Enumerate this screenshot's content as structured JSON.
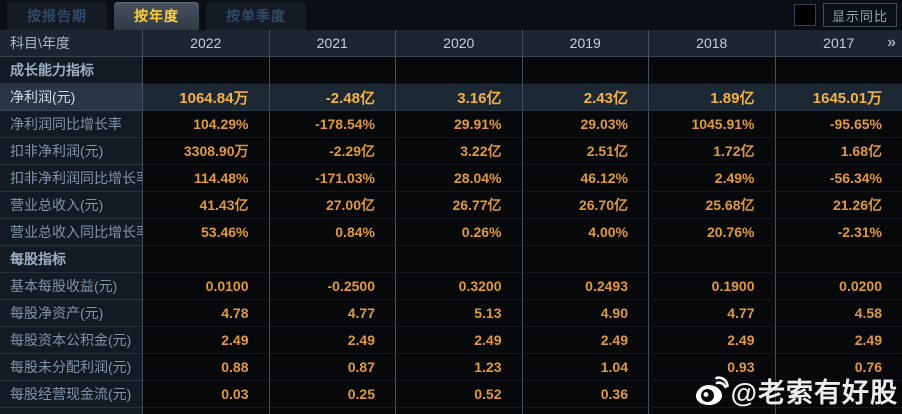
{
  "tabs": [
    {
      "label": "按报告期",
      "active": false
    },
    {
      "label": "按年度",
      "active": true
    },
    {
      "label": "按单季度",
      "active": false
    }
  ],
  "controls": {
    "show_yoy_label": "显示同比",
    "show_yoy_checked": false
  },
  "table": {
    "corner_header": "科目\\年度",
    "year_columns": [
      "2022",
      "2021",
      "2020",
      "2019",
      "2018",
      "2017"
    ],
    "more_icon": "»",
    "rows": [
      {
        "type": "section",
        "label": "成长能力指标",
        "highlight": false,
        "values": [
          "",
          "",
          "",
          "",
          "",
          ""
        ]
      },
      {
        "type": "data",
        "label": "净利润(元)",
        "highlight": true,
        "values": [
          "1064.84万",
          "-2.48亿",
          "3.16亿",
          "2.43亿",
          "1.89亿",
          "1645.01万"
        ]
      },
      {
        "type": "data",
        "label": "净利润同比增长率",
        "highlight": false,
        "values": [
          "104.29%",
          "-178.54%",
          "29.91%",
          "29.03%",
          "1045.91%",
          "-95.65%"
        ]
      },
      {
        "type": "data",
        "label": "扣非净利润(元)",
        "highlight": false,
        "values": [
          "3308.90万",
          "-2.29亿",
          "3.22亿",
          "2.51亿",
          "1.72亿",
          "1.68亿"
        ]
      },
      {
        "type": "data",
        "label": "扣非净利润同比增长率",
        "highlight": false,
        "values": [
          "114.48%",
          "-171.03%",
          "28.04%",
          "46.12%",
          "2.49%",
          "-56.34%"
        ]
      },
      {
        "type": "data",
        "label": "营业总收入(元)",
        "highlight": false,
        "values": [
          "41.43亿",
          "27.00亿",
          "26.77亿",
          "26.70亿",
          "25.68亿",
          "21.26亿"
        ]
      },
      {
        "type": "data",
        "label": "营业总收入同比增长率",
        "highlight": false,
        "values": [
          "53.46%",
          "0.84%",
          "0.26%",
          "4.00%",
          "20.76%",
          "-2.31%"
        ]
      },
      {
        "type": "section",
        "label": "每股指标",
        "highlight": false,
        "values": [
          "",
          "",
          "",
          "",
          "",
          ""
        ]
      },
      {
        "type": "data",
        "label": "基本每股收益(元)",
        "highlight": false,
        "values": [
          "0.0100",
          "-0.2500",
          "0.3200",
          "0.2493",
          "0.1900",
          "0.0200"
        ]
      },
      {
        "type": "data",
        "label": "每股净资产(元)",
        "highlight": false,
        "values": [
          "4.78",
          "4.77",
          "5.13",
          "4.90",
          "4.77",
          "4.58"
        ]
      },
      {
        "type": "data",
        "label": "每股资本公积金(元)",
        "highlight": false,
        "values": [
          "2.49",
          "2.49",
          "2.49",
          "2.49",
          "2.49",
          "2.49"
        ]
      },
      {
        "type": "data",
        "label": "每股未分配利润(元)",
        "highlight": false,
        "values": [
          "0.88",
          "0.87",
          "1.23",
          "1.04",
          "0.93",
          "0.76"
        ]
      },
      {
        "type": "data",
        "label": "每股经营现金流(元)",
        "highlight": false,
        "values": [
          "0.03",
          "0.25",
          "0.52",
          "0.36",
          "",
          ""
        ]
      }
    ]
  },
  "watermark": {
    "text": "@老索有好股",
    "icon": "weibo-icon"
  },
  "colors": {
    "accent_value": "#e0993c",
    "highlight_value": "#f2b145",
    "active_tab_text": "#ffce3a",
    "header_bg": "#1c2530",
    "label_bg": "#131a23",
    "highlight_row_bg": "#1d2835",
    "separator": "#47505c"
  }
}
